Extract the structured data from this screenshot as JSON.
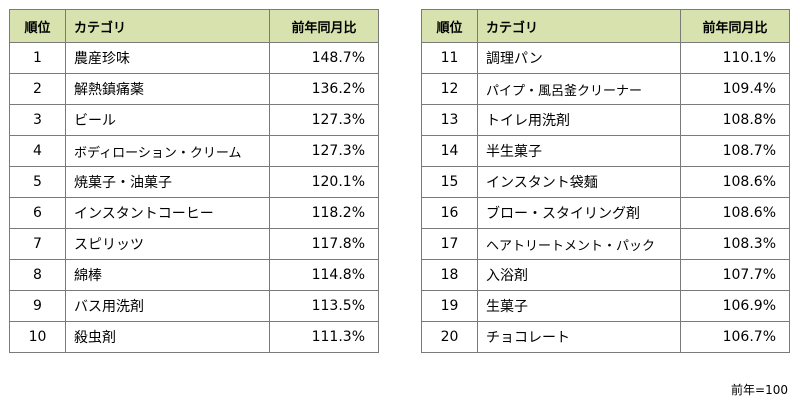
{
  "headers": {
    "rank": "順位",
    "category": "カテゴリ",
    "ratio": "前年同月比"
  },
  "left_rows": [
    {
      "rank": "1",
      "category": "農産珍味",
      "ratio": "148.7%"
    },
    {
      "rank": "2",
      "category": "解熱鎮痛薬",
      "ratio": "136.2%"
    },
    {
      "rank": "3",
      "category": "ビール",
      "ratio": "127.3%"
    },
    {
      "rank": "4",
      "category": "ボディローション・クリーム",
      "ratio": "127.3%"
    },
    {
      "rank": "5",
      "category": "焼菓子・油菓子",
      "ratio": "120.1%"
    },
    {
      "rank": "6",
      "category": "インスタントコーヒー",
      "ratio": "118.2%"
    },
    {
      "rank": "7",
      "category": "スピリッツ",
      "ratio": "117.8%"
    },
    {
      "rank": "8",
      "category": "綿棒",
      "ratio": "114.8%"
    },
    {
      "rank": "9",
      "category": "バス用洗剤",
      "ratio": "113.5%"
    },
    {
      "rank": "10",
      "category": "殺虫剤",
      "ratio": "111.3%"
    }
  ],
  "right_rows": [
    {
      "rank": "11",
      "category": "調理パン",
      "ratio": "110.1%"
    },
    {
      "rank": "12",
      "category": "パイプ・風呂釜クリーナー",
      "ratio": "109.4%"
    },
    {
      "rank": "13",
      "category": "トイレ用洗剤",
      "ratio": "108.8%"
    },
    {
      "rank": "14",
      "category": "半生菓子",
      "ratio": "108.7%"
    },
    {
      "rank": "15",
      "category": "インスタント袋麺",
      "ratio": "108.6%"
    },
    {
      "rank": "16",
      "category": "ブロー・スタイリング剤",
      "ratio": "108.6%"
    },
    {
      "rank": "17",
      "category": "ヘアトリートメント・パック",
      "ratio": "108.3%"
    },
    {
      "rank": "18",
      "category": "入浴剤",
      "ratio": "107.7%"
    },
    {
      "rank": "19",
      "category": "生菓子",
      "ratio": "106.9%"
    },
    {
      "rank": "20",
      "category": "チョコレート",
      "ratio": "106.7%"
    }
  ],
  "note": "前年=100"
}
